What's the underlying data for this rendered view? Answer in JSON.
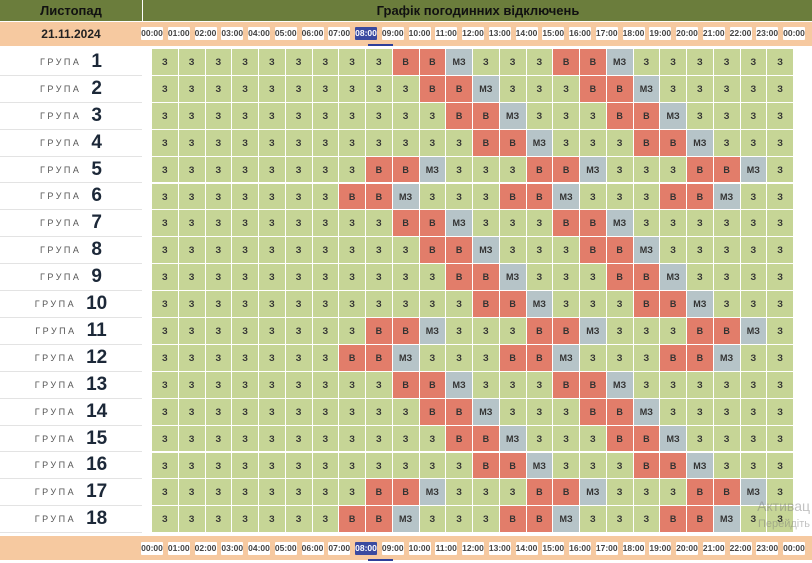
{
  "header": {
    "month": "Листопад",
    "title": "Графік погодинних відключень"
  },
  "date": "21.11.2024",
  "current_hour_index": 8,
  "hours": [
    "00:00",
    "01:00",
    "02:00",
    "03:00",
    "04:00",
    "05:00",
    "06:00",
    "07:00",
    "08:00",
    "09:00",
    "10:00",
    "11:00",
    "12:00",
    "13:00",
    "14:00",
    "15:00",
    "16:00",
    "17:00",
    "18:00",
    "19:00",
    "20:00",
    "21:00",
    "22:00",
    "23:00",
    "00:00"
  ],
  "group_label": "ГРУПА",
  "legend_codes": {
    "З": "on",
    "В": "off",
    "МЗ": "maybe"
  },
  "colors": {
    "on": "#c6d596",
    "off": "#e27d6a",
    "maybe": "#b6c4c8",
    "header": "#6b7d3c",
    "band": "#f6c9a0",
    "current": "#3a4aa0"
  },
  "groups": [
    {
      "num": "1",
      "cells": [
        "З",
        "З",
        "З",
        "З",
        "З",
        "З",
        "З",
        "З",
        "З",
        "В",
        "В",
        "МЗ",
        "З",
        "З",
        "З",
        "В",
        "В",
        "МЗ",
        "З",
        "З",
        "З",
        "З",
        "З",
        "З"
      ]
    },
    {
      "num": "2",
      "cells": [
        "З",
        "З",
        "З",
        "З",
        "З",
        "З",
        "З",
        "З",
        "З",
        "З",
        "В",
        "В",
        "МЗ",
        "З",
        "З",
        "З",
        "В",
        "В",
        "МЗ",
        "З",
        "З",
        "З",
        "З",
        "З"
      ]
    },
    {
      "num": "3",
      "cells": [
        "З",
        "З",
        "З",
        "З",
        "З",
        "З",
        "З",
        "З",
        "З",
        "З",
        "З",
        "В",
        "В",
        "МЗ",
        "З",
        "З",
        "З",
        "В",
        "В",
        "МЗ",
        "З",
        "З",
        "З",
        "З"
      ]
    },
    {
      "num": "4",
      "cells": [
        "З",
        "З",
        "З",
        "З",
        "З",
        "З",
        "З",
        "З",
        "З",
        "З",
        "З",
        "З",
        "В",
        "В",
        "МЗ",
        "З",
        "З",
        "З",
        "В",
        "В",
        "МЗ",
        "З",
        "З",
        "З"
      ]
    },
    {
      "num": "5",
      "cells": [
        "З",
        "З",
        "З",
        "З",
        "З",
        "З",
        "З",
        "З",
        "В",
        "В",
        "МЗ",
        "З",
        "З",
        "З",
        "В",
        "В",
        "МЗ",
        "З",
        "З",
        "З",
        "В",
        "В",
        "МЗ",
        "З"
      ]
    },
    {
      "num": "6",
      "cells": [
        "З",
        "З",
        "З",
        "З",
        "З",
        "З",
        "З",
        "В",
        "В",
        "МЗ",
        "З",
        "З",
        "З",
        "В",
        "В",
        "МЗ",
        "З",
        "З",
        "З",
        "В",
        "В",
        "МЗ",
        "З",
        "З"
      ]
    },
    {
      "num": "7",
      "cells": [
        "З",
        "З",
        "З",
        "З",
        "З",
        "З",
        "З",
        "З",
        "З",
        "В",
        "В",
        "МЗ",
        "З",
        "З",
        "З",
        "В",
        "В",
        "МЗ",
        "З",
        "З",
        "З",
        "З",
        "З",
        "З"
      ]
    },
    {
      "num": "8",
      "cells": [
        "З",
        "З",
        "З",
        "З",
        "З",
        "З",
        "З",
        "З",
        "З",
        "З",
        "В",
        "В",
        "МЗ",
        "З",
        "З",
        "З",
        "В",
        "В",
        "МЗ",
        "З",
        "З",
        "З",
        "З",
        "З"
      ]
    },
    {
      "num": "9",
      "cells": [
        "З",
        "З",
        "З",
        "З",
        "З",
        "З",
        "З",
        "З",
        "З",
        "З",
        "З",
        "В",
        "В",
        "МЗ",
        "З",
        "З",
        "З",
        "В",
        "В",
        "МЗ",
        "З",
        "З",
        "З",
        "З"
      ]
    },
    {
      "num": "10",
      "cells": [
        "З",
        "З",
        "З",
        "З",
        "З",
        "З",
        "З",
        "З",
        "З",
        "З",
        "З",
        "З",
        "В",
        "В",
        "МЗ",
        "З",
        "З",
        "З",
        "В",
        "В",
        "МЗ",
        "З",
        "З",
        "З"
      ]
    },
    {
      "num": "11",
      "cells": [
        "З",
        "З",
        "З",
        "З",
        "З",
        "З",
        "З",
        "З",
        "В",
        "В",
        "МЗ",
        "З",
        "З",
        "З",
        "В",
        "В",
        "МЗ",
        "З",
        "З",
        "З",
        "В",
        "В",
        "МЗ",
        "З"
      ]
    },
    {
      "num": "12",
      "cells": [
        "З",
        "З",
        "З",
        "З",
        "З",
        "З",
        "З",
        "В",
        "В",
        "МЗ",
        "З",
        "З",
        "З",
        "В",
        "В",
        "МЗ",
        "З",
        "З",
        "З",
        "В",
        "В",
        "МЗ",
        "З",
        "З"
      ]
    },
    {
      "num": "13",
      "cells": [
        "З",
        "З",
        "З",
        "З",
        "З",
        "З",
        "З",
        "З",
        "З",
        "В",
        "В",
        "МЗ",
        "З",
        "З",
        "З",
        "В",
        "В",
        "МЗ",
        "З",
        "З",
        "З",
        "З",
        "З",
        "З"
      ]
    },
    {
      "num": "14",
      "cells": [
        "З",
        "З",
        "З",
        "З",
        "З",
        "З",
        "З",
        "З",
        "З",
        "З",
        "В",
        "В",
        "МЗ",
        "З",
        "З",
        "З",
        "В",
        "В",
        "МЗ",
        "З",
        "З",
        "З",
        "З",
        "З"
      ]
    },
    {
      "num": "15",
      "cells": [
        "З",
        "З",
        "З",
        "З",
        "З",
        "З",
        "З",
        "З",
        "З",
        "З",
        "З",
        "В",
        "В",
        "МЗ",
        "З",
        "З",
        "З",
        "В",
        "В",
        "МЗ",
        "З",
        "З",
        "З",
        "З"
      ]
    },
    {
      "num": "16",
      "cells": [
        "З",
        "З",
        "З",
        "З",
        "З",
        "З",
        "З",
        "З",
        "З",
        "З",
        "З",
        "З",
        "В",
        "В",
        "МЗ",
        "З",
        "З",
        "З",
        "В",
        "В",
        "МЗ",
        "З",
        "З",
        "З"
      ]
    },
    {
      "num": "17",
      "cells": [
        "З",
        "З",
        "З",
        "З",
        "З",
        "З",
        "З",
        "З",
        "В",
        "В",
        "МЗ",
        "З",
        "З",
        "З",
        "В",
        "В",
        "МЗ",
        "З",
        "З",
        "З",
        "В",
        "В",
        "МЗ",
        "З"
      ]
    },
    {
      "num": "18",
      "cells": [
        "З",
        "З",
        "З",
        "З",
        "З",
        "З",
        "З",
        "В",
        "В",
        "МЗ",
        "З",
        "З",
        "З",
        "В",
        "В",
        "МЗ",
        "З",
        "З",
        "З",
        "В",
        "В",
        "МЗ",
        "З",
        "З"
      ]
    }
  ],
  "watermark": {
    "line1": "Активац",
    "line2": "Перейдіть"
  }
}
